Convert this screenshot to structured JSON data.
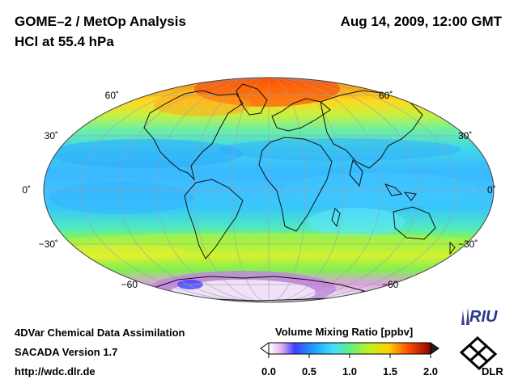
{
  "header": {
    "title_line1": "GOME–2 / MetOp Analysis",
    "title_line2": "HCl at 55.4 hPa",
    "datetime": "Aug 14, 2009, 12:00 GMT"
  },
  "map": {
    "projection": "mollweide",
    "lat_labels_left": [
      "60˚",
      "30˚",
      "0˚",
      "−30˚",
      "−60"
    ],
    "lat_labels_right": [
      "60˚",
      "30˚",
      "0˚",
      "−30˚",
      "−60"
    ]
  },
  "colorbar": {
    "title": "Volume Mixing Ratio [ppbv]",
    "ticks": [
      "0.0",
      "0.5",
      "1.0",
      "1.5",
      "2.0"
    ],
    "range": [
      0.0,
      2.0
    ]
  },
  "footer": {
    "line1": "4DVar Chemical Data Assimilation",
    "line2": "SACADA Version 1.7",
    "line3": "http://wdc.dlr.de"
  },
  "logos": {
    "riu": "RIU",
    "dlr": "DLR"
  },
  "colors": {
    "background": "#ffffff",
    "field_low": "#3cc8ff",
    "field_mid": "#7fff60",
    "field_high": "#ff4000"
  }
}
